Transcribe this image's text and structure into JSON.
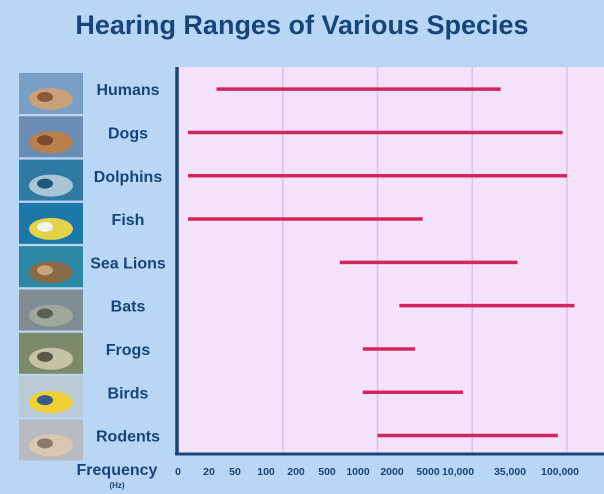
{
  "chart_data": {
    "type": "bar",
    "orientation": "horizontal-range",
    "title": "Hearing Ranges of Various Species",
    "xlabel": "Frequency",
    "xunit": "(Hz)",
    "x_scale": "log",
    "x_ticks": [
      "0",
      "20",
      "50",
      "100",
      "200",
      "500",
      "1000",
      "2000",
      "5000",
      "10,000",
      "35,000",
      "100,000"
    ],
    "grid": "vertical-major",
    "categories": [
      "Humans",
      "Dogs",
      "Dolphins",
      "Fish",
      "Sea Lions",
      "Bats",
      "Frogs",
      "Birds",
      "Rodents"
    ],
    "series": [
      {
        "ranges": [
          [
            20,
            20000
          ],
          [
            10,
            90000
          ],
          [
            10,
            100000
          ],
          [
            10,
            3000
          ],
          [
            400,
            30000
          ],
          [
            1700,
            120000
          ],
          [
            700,
            2500
          ],
          [
            700,
            8000
          ],
          [
            1000,
            80000
          ]
        ]
      }
    ],
    "colors": {
      "background": "#b9d6f5",
      "plot_background": "#f3e2f9",
      "bar": "#d4245b",
      "text": "#17457a",
      "grid": "#d8c3ee"
    }
  }
}
